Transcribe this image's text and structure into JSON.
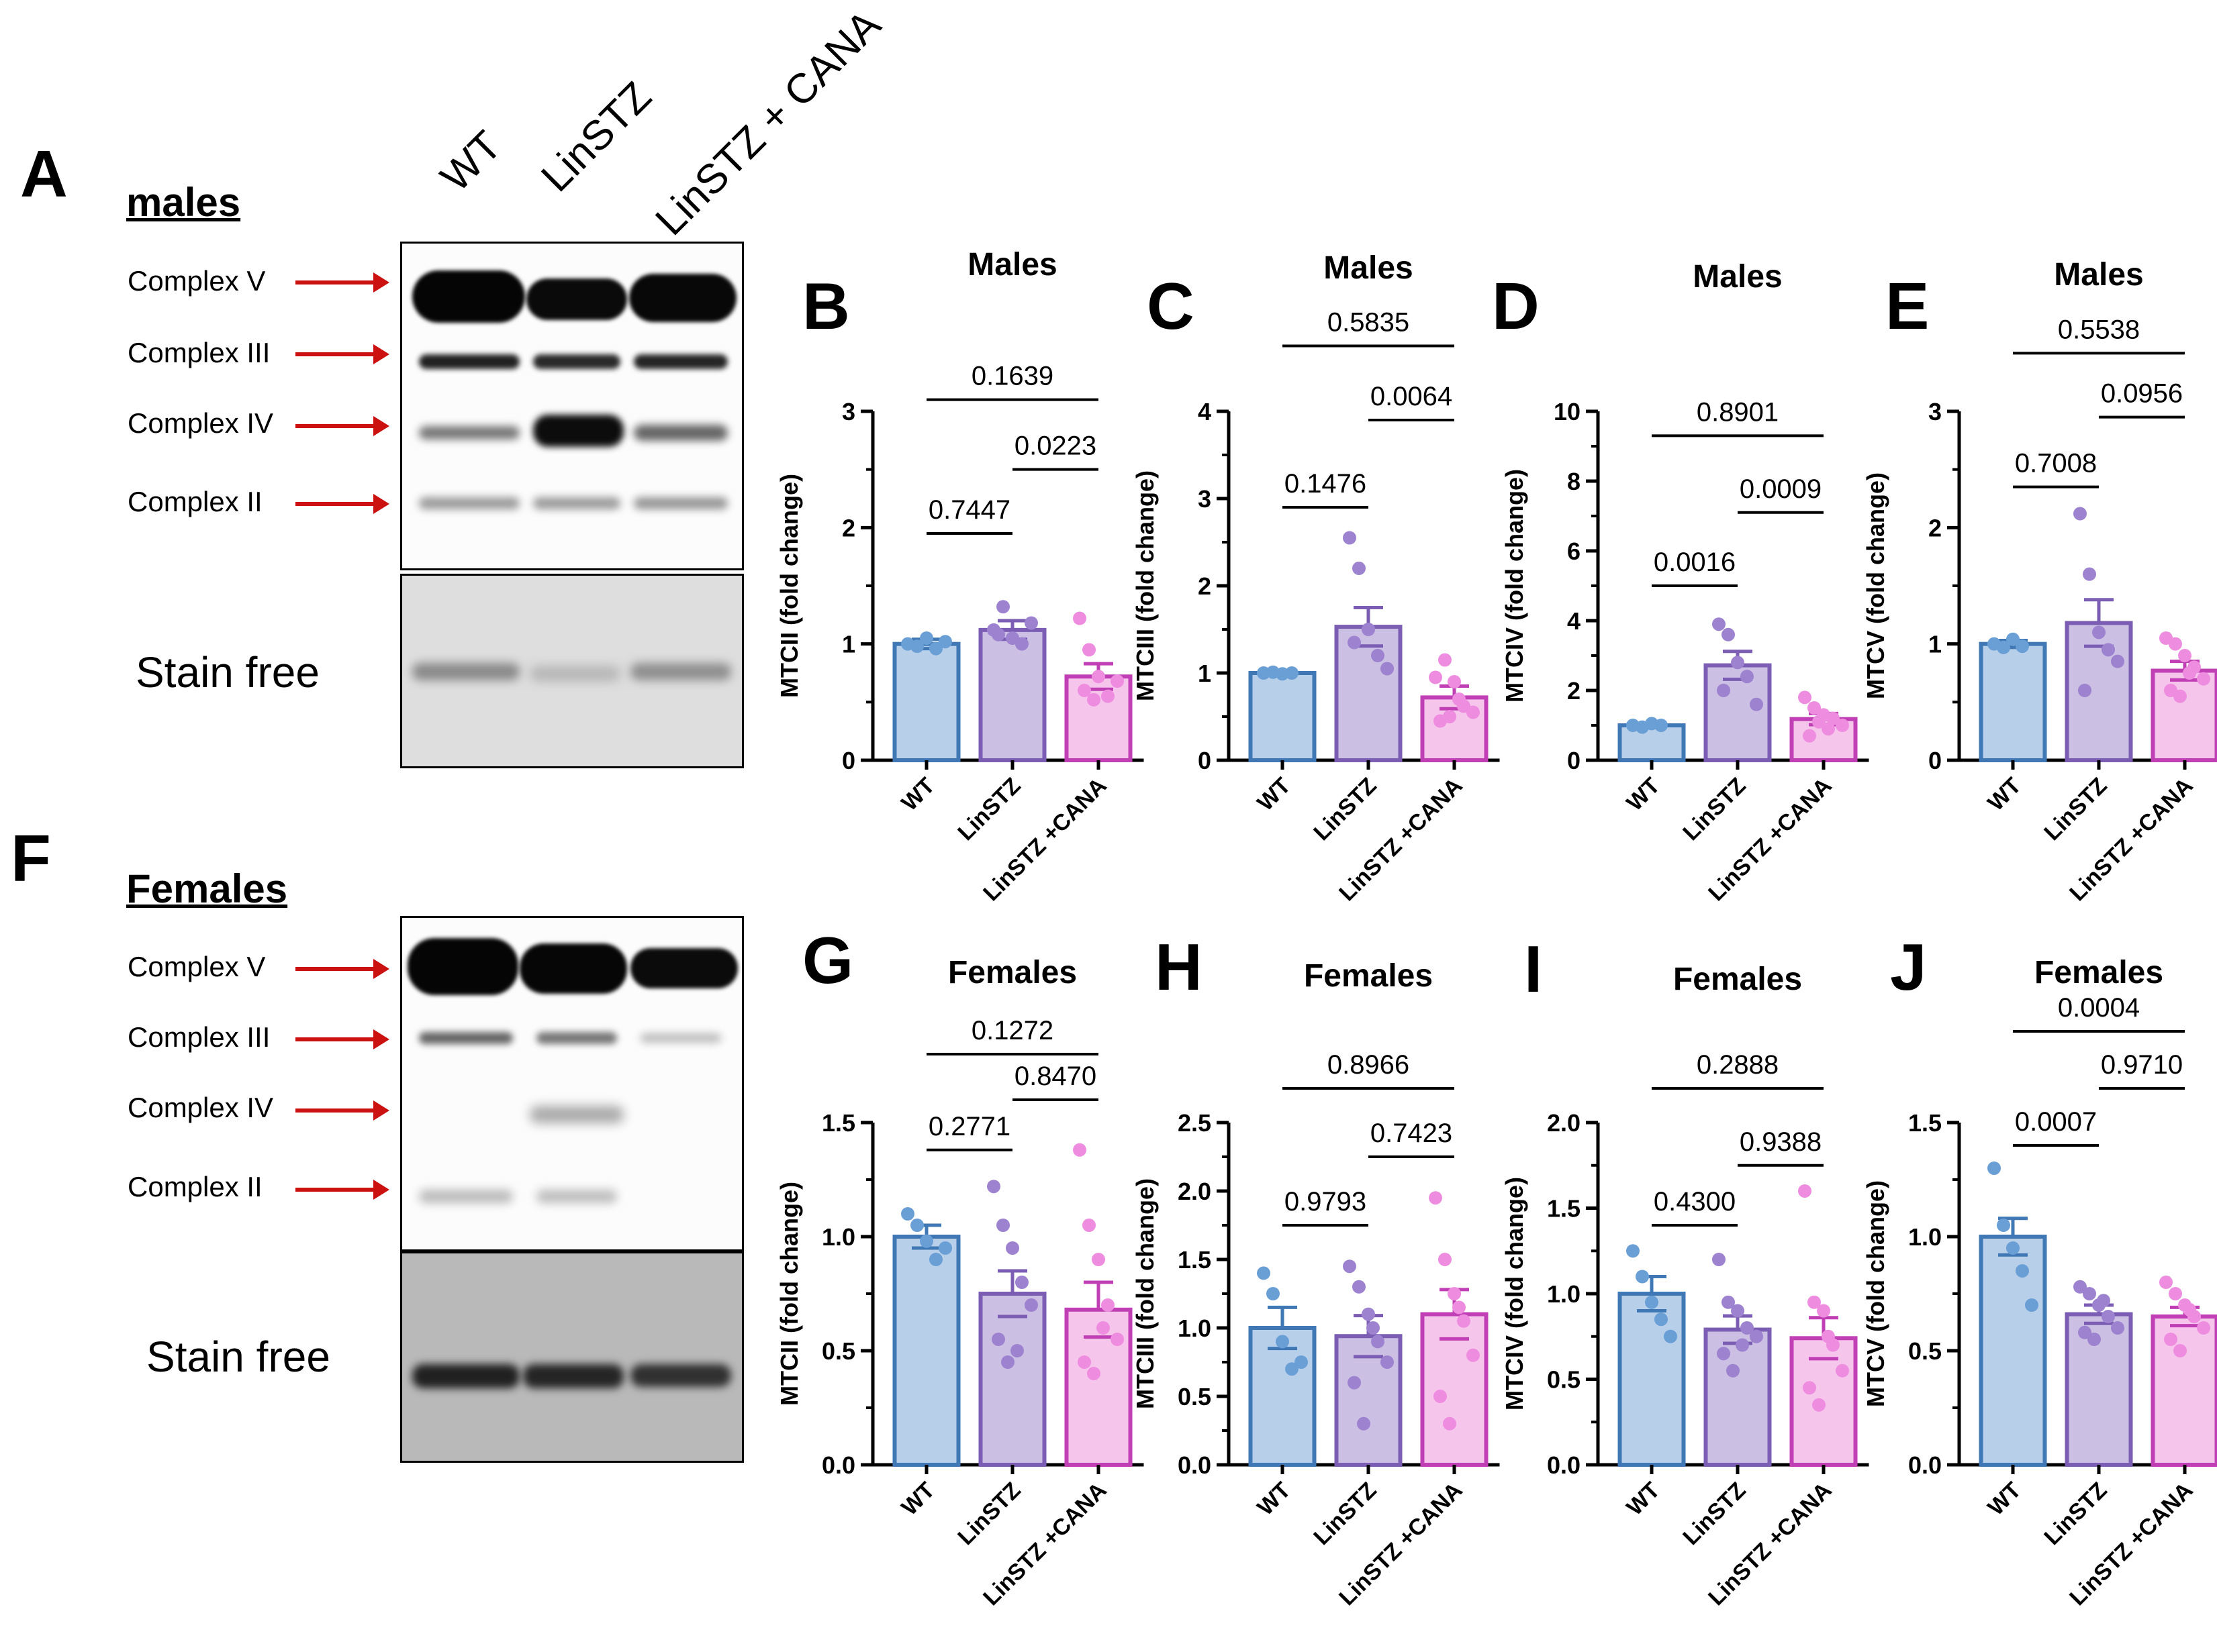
{
  "figure": {
    "panel_A_letter": "A",
    "panel_F_letter": "F",
    "males_label": "males",
    "females_label": "Females",
    "lanes": [
      "WT",
      "LinSTZ",
      "LinSTZ + CANA"
    ],
    "complex_labels": [
      "Complex V",
      "Complex III",
      "Complex IV",
      "Complex II"
    ],
    "stain_free_label": "Stain free",
    "colors": {
      "wt_fill": "#b8cfea",
      "wt_edge": "#3f78b4",
      "wt_dot": "#6a9fd6",
      "lin_fill": "#cbbfe3",
      "lin_edge": "#7b5eb3",
      "lin_dot": "#9d82cf",
      "cana_fill": "#f6c5ec",
      "cana_edge": "#c03fb4",
      "cana_dot": "#ee8ddf",
      "arrow": "#cc1111"
    }
  },
  "chart_data": [
    {
      "panel": "B",
      "type": "bar",
      "title": "Males",
      "ylabel": "MTCII (fold change)",
      "categories": [
        "WT",
        "LinSTZ",
        "LinSTZ +CANA"
      ],
      "values": [
        1.0,
        1.12,
        0.72
      ],
      "errors": [
        0.04,
        0.08,
        0.11
      ],
      "ylim": [
        0,
        3
      ],
      "yticks": [
        "0",
        "1",
        "2",
        "3"
      ],
      "points": [
        [
          1.0,
          0.98,
          1.05,
          0.96,
          1.02
        ],
        [
          1.12,
          1.32,
          1.05,
          1.0,
          1.18,
          1.08
        ],
        [
          1.22,
          0.95,
          0.72,
          0.55,
          0.68,
          0.6,
          0.52
        ]
      ],
      "comparisons": [
        {
          "label": "0.7447",
          "from": 0,
          "to": 1,
          "y": 1.95
        },
        {
          "label": "0.0223",
          "from": 1,
          "to": 2,
          "y": 2.5
        },
        {
          "label": "0.1639",
          "from": 0,
          "to": 2,
          "y": 3.1
        }
      ]
    },
    {
      "panel": "C",
      "type": "bar",
      "title": "Males",
      "ylabel": "MTCIII (fold change)",
      "categories": [
        "WT",
        "LinSTZ",
        "LinSTZ +CANA"
      ],
      "values": [
        1.0,
        1.53,
        0.72
      ],
      "errors": [
        0.02,
        0.22,
        0.13
      ],
      "ylim": [
        0,
        4
      ],
      "yticks": [
        "0",
        "1",
        "2",
        "3",
        "4"
      ],
      "points": [
        [
          1.0,
          1.01,
          0.99,
          1.0
        ],
        [
          2.55,
          2.2,
          1.5,
          1.2,
          1.05,
          1.35
        ],
        [
          0.95,
          1.15,
          0.9,
          0.62,
          0.55,
          0.45,
          0.5,
          0.7
        ]
      ],
      "comparisons": [
        {
          "label": "0.1476",
          "from": 0,
          "to": 1,
          "y": 2.9
        },
        {
          "label": "0.0064",
          "from": 1,
          "to": 2,
          "y": 3.9
        },
        {
          "label": "0.5835",
          "from": 0,
          "to": 2,
          "y": 4.75
        }
      ]
    },
    {
      "panel": "D",
      "type": "bar",
      "title": "Males",
      "ylabel": "MTCIV (fold change)",
      "categories": [
        "WT",
        "LinSTZ",
        "LinSTZ +CANA"
      ],
      "values": [
        1.0,
        2.72,
        1.18
      ],
      "errors": [
        0.03,
        0.4,
        0.16
      ],
      "ylim": [
        0,
        10
      ],
      "yticks": [
        "0",
        "2",
        "4",
        "6",
        "8",
        "10"
      ],
      "points": [
        [
          1.0,
          0.95,
          1.05,
          1.0
        ],
        [
          3.9,
          3.6,
          2.8,
          2.4,
          1.6,
          2.0
        ],
        [
          1.8,
          1.5,
          1.3,
          1.2,
          1.0,
          0.7,
          1.1,
          0.9
        ]
      ],
      "comparisons": [
        {
          "label": "0.0016",
          "from": 0,
          "to": 1,
          "y": 5.0
        },
        {
          "label": "0.0009",
          "from": 1,
          "to": 2,
          "y": 7.1
        },
        {
          "label": "0.8901",
          "from": 0,
          "to": 2,
          "y": 9.3
        }
      ]
    },
    {
      "panel": "E",
      "type": "bar",
      "title": "Males",
      "ylabel": "MTCV (fold change)",
      "categories": [
        "WT",
        "LinSTZ",
        "LinSTZ +CANA"
      ],
      "values": [
        1.0,
        1.18,
        0.77
      ],
      "errors": [
        0.03,
        0.2,
        0.08
      ],
      "ylim": [
        0,
        3
      ],
      "yticks": [
        "0",
        "1",
        "2",
        "3"
      ],
      "points": [
        [
          1.0,
          0.97,
          1.04,
          0.98
        ],
        [
          2.12,
          1.6,
          1.1,
          0.95,
          0.85,
          0.6
        ],
        [
          1.05,
          1.0,
          0.9,
          0.8,
          0.7,
          0.6,
          0.55,
          0.75
        ]
      ],
      "comparisons": [
        {
          "label": "0.7008",
          "from": 0,
          "to": 1,
          "y": 2.35
        },
        {
          "label": "0.0956",
          "from": 1,
          "to": 2,
          "y": 2.95
        },
        {
          "label": "0.5538",
          "from": 0,
          "to": 2,
          "y": 3.5
        }
      ]
    },
    {
      "panel": "G",
      "type": "bar",
      "title": "Females",
      "ylabel": "MTCII (fold change)",
      "categories": [
        "WT",
        "LinSTZ",
        "LinSTZ +CANA"
      ],
      "values": [
        1.0,
        0.75,
        0.68
      ],
      "errors": [
        0.05,
        0.1,
        0.12
      ],
      "ylim": [
        0,
        1.5
      ],
      "yticks": [
        "0.0",
        "0.5",
        "1.0",
        "1.5"
      ],
      "points": [
        [
          1.1,
          1.05,
          0.98,
          0.9,
          0.95
        ],
        [
          1.22,
          1.05,
          0.95,
          0.8,
          0.7,
          0.55,
          0.45,
          0.5
        ],
        [
          1.38,
          1.05,
          0.9,
          0.7,
          0.55,
          0.45,
          0.4,
          0.6
        ]
      ],
      "comparisons": [
        {
          "label": "0.2771",
          "from": 0,
          "to": 1,
          "y": 1.38
        },
        {
          "label": "0.8470",
          "from": 1,
          "to": 2,
          "y": 1.6
        },
        {
          "label": "0.1272",
          "from": 0,
          "to": 2,
          "y": 1.8
        }
      ]
    },
    {
      "panel": "H",
      "type": "bar",
      "title": "Females",
      "ylabel": "MTCIII (fold change)",
      "categories": [
        "WT",
        "LinSTZ",
        "LinSTZ +CANA"
      ],
      "values": [
        1.0,
        0.94,
        1.1
      ],
      "errors": [
        0.15,
        0.15,
        0.18
      ],
      "ylim": [
        0,
        2.5
      ],
      "yticks": [
        "0.0",
        "0.5",
        "1.0",
        "1.5",
        "2.0",
        "2.5"
      ],
      "points": [
        [
          1.4,
          1.25,
          0.9,
          0.7,
          0.75
        ],
        [
          1.45,
          1.3,
          1.1,
          0.9,
          0.75,
          0.6,
          0.3,
          1.0
        ],
        [
          1.95,
          1.5,
          1.25,
          1.05,
          0.8,
          0.5,
          0.3,
          1.15
        ]
      ],
      "comparisons": [
        {
          "label": "0.9793",
          "from": 0,
          "to": 1,
          "y": 1.75
        },
        {
          "label": "0.7423",
          "from": 1,
          "to": 2,
          "y": 2.25
        },
        {
          "label": "0.8966",
          "from": 0,
          "to": 2,
          "y": 2.75
        }
      ]
    },
    {
      "panel": "I",
      "type": "bar",
      "title": "Females",
      "ylabel": "MTCIV (fold change)",
      "categories": [
        "WT",
        "LinSTZ",
        "LinSTZ +CANA"
      ],
      "values": [
        1.0,
        0.79,
        0.74
      ],
      "errors": [
        0.1,
        0.08,
        0.12
      ],
      "ylim": [
        0,
        2.0
      ],
      "yticks": [
        "0.0",
        "0.5",
        "1.0",
        "1.5",
        "2.0"
      ],
      "points": [
        [
          1.25,
          1.1,
          0.95,
          0.85,
          0.75
        ],
        [
          1.2,
          0.95,
          0.9,
          0.8,
          0.75,
          0.65,
          0.55,
          0.7
        ],
        [
          1.6,
          0.95,
          0.9,
          0.7,
          0.55,
          0.45,
          0.35,
          0.75
        ]
      ],
      "comparisons": [
        {
          "label": "0.4300",
          "from": 0,
          "to": 1,
          "y": 1.4
        },
        {
          "label": "0.9388",
          "from": 1,
          "to": 2,
          "y": 1.75
        },
        {
          "label": "0.2888",
          "from": 0,
          "to": 2,
          "y": 2.2
        }
      ]
    },
    {
      "panel": "J",
      "type": "bar",
      "title": "Females",
      "ylabel": "MTCV (fold change)",
      "categories": [
        "WT",
        "LinSTZ",
        "LinSTZ +CANA"
      ],
      "values": [
        1.0,
        0.66,
        0.65
      ],
      "errors": [
        0.08,
        0.04,
        0.04
      ],
      "ylim": [
        0,
        1.5
      ],
      "yticks": [
        "0.0",
        "0.5",
        "1.0",
        "1.5"
      ],
      "points": [
        [
          1.3,
          1.05,
          0.95,
          0.85,
          0.7
        ],
        [
          0.78,
          0.75,
          0.7,
          0.65,
          0.6,
          0.58,
          0.55,
          0.72
        ],
        [
          0.8,
          0.75,
          0.7,
          0.65,
          0.6,
          0.55,
          0.5,
          0.68
        ]
      ],
      "comparisons": [
        {
          "label": "0.0007",
          "from": 0,
          "to": 1,
          "y": 1.4
        },
        {
          "label": "0.9710",
          "from": 1,
          "to": 2,
          "y": 1.65
        },
        {
          "label": "0.0004",
          "from": 0,
          "to": 2,
          "y": 1.9
        }
      ]
    }
  ]
}
